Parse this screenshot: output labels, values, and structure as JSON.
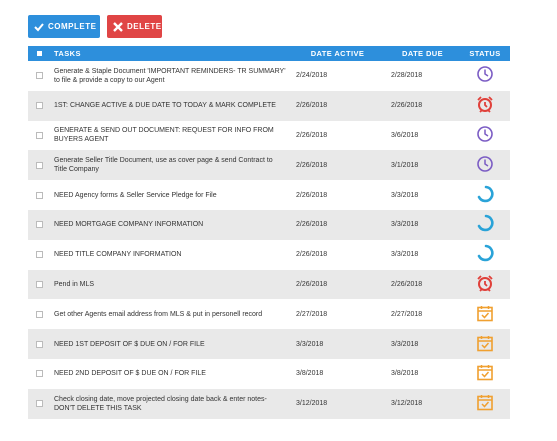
{
  "toolbar": {
    "complete": "COMPLETE",
    "delete": "DELETE"
  },
  "table": {
    "headers": [
      "TASKS",
      "DATE ACTIVE",
      "DATE DUE",
      "STATUS"
    ],
    "rows": [
      [
        "Generate & Staple Document 'IMPORTANT REMINDERS- TR SUMMARY' to file & provide a copy to our Agent",
        "2/24/2018",
        "2/28/2018"
      ],
      [
        "1ST: CHANGE ACTIVE & DUE DATE TO TODAY & MARK COMPLETE",
        "2/26/2018",
        "2/26/2018"
      ],
      [
        "GENERATE & SEND OUT DOCUMENT: REQUEST FOR INFO FROM BUYERS AGENT",
        "2/26/2018",
        "3/6/2018"
      ],
      [
        "Generate Seller Title Document, use as cover page & send Contract to Title Company",
        "2/26/2018",
        "3/1/2018"
      ],
      [
        "NEED Agency forms & Seller Service Pledge for File",
        "2/26/2018",
        "3/3/2018"
      ],
      [
        "NEED MORTGAGE COMPANY INFORMATION",
        "2/26/2018",
        "3/3/2018"
      ],
      [
        "NEED TITLE COMPANY INFORMATION",
        "2/26/2018",
        "3/3/2018"
      ],
      [
        "Pend in MLS",
        "2/26/2018",
        "2/26/2018"
      ],
      [
        "Get other Agents email address from MLS & put in personell record",
        "2/27/2018",
        "2/27/2018"
      ],
      [
        "NEED 1ST DEPOSIT OF $ DUE ON / FOR FILE",
        "3/3/2018",
        "3/3/2018"
      ],
      [
        "NEED 2ND DEPOSIT OF $ DUE ON / FOR FILE",
        "3/8/2018",
        "3/8/2018"
      ],
      [
        "Check closing date, move projected closing date back & enter notes- DON'T DELETE THIS TASK",
        "3/12/2018",
        "3/12/2018"
      ]
    ]
  }
}
